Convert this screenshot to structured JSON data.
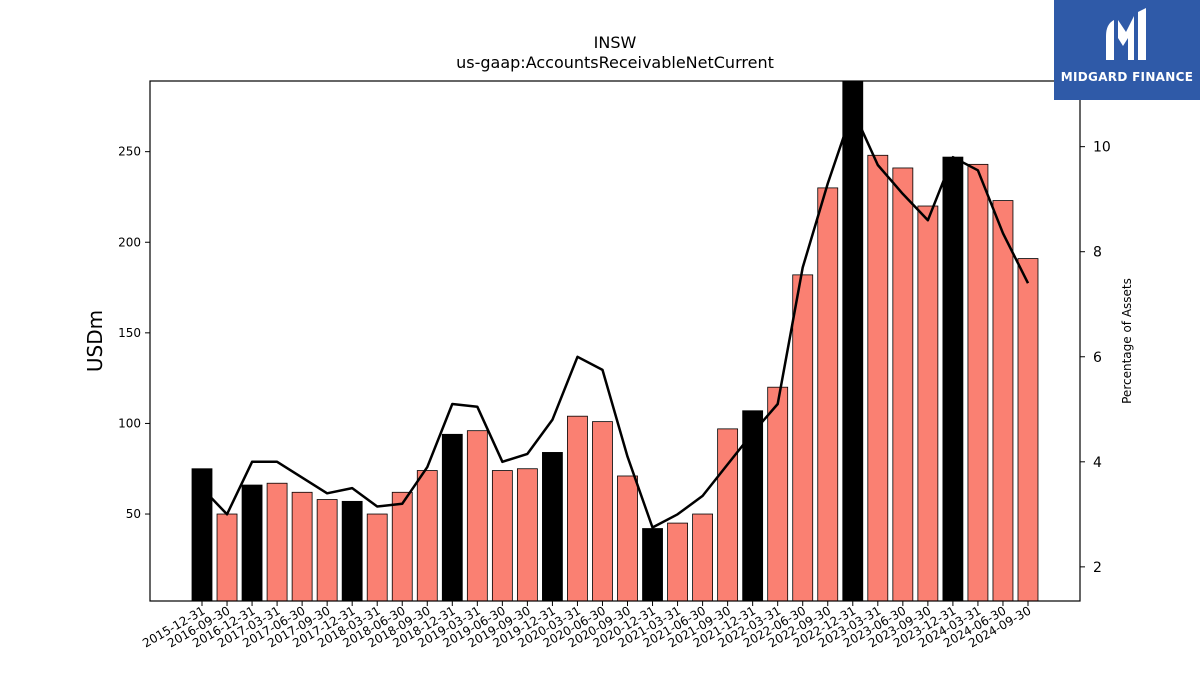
{
  "brand": {
    "name": "MIDGARD FINANCE"
  },
  "colors": {
    "year_end_bar": "#000000",
    "quarter_bar": "#fa8072",
    "line": "#000000",
    "logo_bg": "#2f5aa8"
  },
  "chart_data": {
    "type": "bar",
    "title": "INSW",
    "subtitle": "us-gaap:AccountsReceivableNetCurrent",
    "ylabel": "USDm",
    "y2label": "Percentage of Assets",
    "ylim": [
      2,
      289
    ],
    "y2lim": [
      1.35,
      11.25
    ],
    "yticks": [
      50,
      100,
      150,
      200,
      250
    ],
    "y2ticks": [
      2,
      4,
      6,
      8,
      10
    ],
    "categories": [
      "2015-12-31",
      "2016-09-30",
      "2016-12-31",
      "2017-03-31",
      "2017-06-30",
      "2017-09-30",
      "2017-12-31",
      "2018-03-31",
      "2018-06-30",
      "2018-09-30",
      "2018-12-31",
      "2019-03-31",
      "2019-06-30",
      "2019-09-30",
      "2019-12-31",
      "2020-03-31",
      "2020-06-30",
      "2020-09-30",
      "2020-12-31",
      "2021-03-31",
      "2021-06-30",
      "2021-09-30",
      "2021-12-31",
      "2022-03-31",
      "2022-06-30",
      "2022-09-30",
      "2022-12-31",
      "2023-03-31",
      "2023-06-30",
      "2023-09-30",
      "2023-12-31",
      "2024-03-31",
      "2024-06-30",
      "2024-09-30"
    ],
    "series": [
      {
        "type": "bar",
        "axis": "left",
        "values": [
          75,
          50,
          66,
          67,
          62,
          58,
          57,
          50,
          62,
          74,
          94,
          96,
          74,
          75,
          84,
          104,
          101,
          71,
          42,
          45,
          50,
          97,
          107,
          120,
          182,
          230,
          289,
          248,
          241,
          220,
          247,
          243,
          223,
          191
        ],
        "year_end": [
          true,
          false,
          true,
          false,
          false,
          false,
          true,
          false,
          false,
          false,
          true,
          false,
          false,
          false,
          true,
          false,
          false,
          false,
          true,
          false,
          false,
          false,
          true,
          false,
          false,
          false,
          true,
          false,
          false,
          false,
          true,
          false,
          false,
          false
        ]
      },
      {
        "type": "line",
        "axis": "right",
        "values": [
          3.5,
          3.0,
          4.0,
          4.0,
          3.7,
          3.4,
          3.5,
          3.15,
          3.2,
          3.9,
          5.1,
          5.05,
          4.0,
          4.15,
          4.8,
          6.0,
          5.75,
          4.1,
          2.75,
          3.0,
          3.35,
          3.95,
          4.55,
          5.1,
          7.7,
          9.3,
          10.7,
          9.65,
          9.1,
          8.6,
          9.8,
          9.55,
          8.35,
          7.4
        ]
      }
    ]
  }
}
